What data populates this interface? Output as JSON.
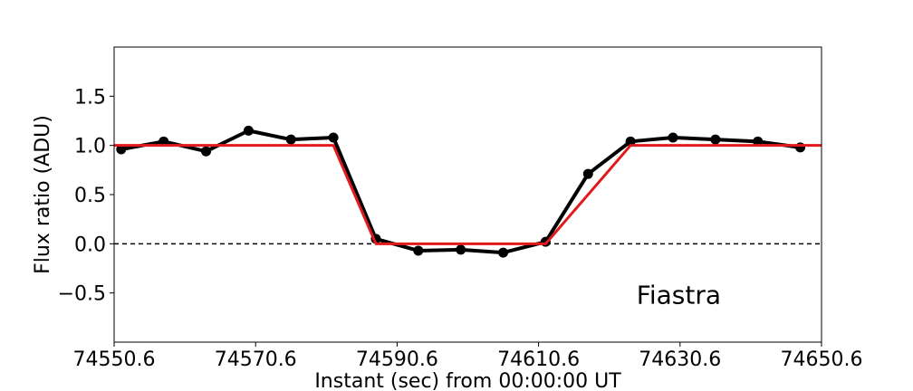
{
  "chart_data": {
    "type": "line",
    "title": "",
    "xlabel": "Instant (sec) from 00:00:00 UT",
    "ylabel": "Flux ratio (ADU)",
    "xlim": [
      74550.6,
      74650.6
    ],
    "ylim": [
      -1.0,
      2.0
    ],
    "xticks": [
      74550.6,
      74570.6,
      74590.6,
      74610.6,
      74630.6,
      74650.6
    ],
    "xtick_labels": [
      "74550.6",
      "74570.6",
      "74590.6",
      "74610.6",
      "74630.6",
      "74650.6"
    ],
    "yticks": [
      -0.5,
      0.0,
      0.5,
      1.0,
      1.5
    ],
    "ytick_labels": [
      "−0.5",
      "0.0",
      "0.5",
      "1.0",
      "1.5"
    ],
    "grid": false,
    "annotation": "Fiastra",
    "series": [
      {
        "color": "#000000",
        "markers": true,
        "x": [
          74551.6,
          74557.6,
          74563.6,
          74569.6,
          74575.6,
          74581.6,
          74587.6,
          74593.6,
          74599.6,
          74605.6,
          74611.6,
          74617.6,
          74623.6,
          74629.6,
          74635.6,
          74641.6,
          74647.6
        ],
        "y": [
          0.96,
          1.04,
          0.94,
          1.15,
          1.06,
          1.08,
          0.05,
          -0.07,
          -0.06,
          -0.09,
          0.02,
          0.71,
          1.04,
          1.08,
          1.06,
          1.04,
          0.98
        ]
      },
      {
        "color": "#e31a1c",
        "markers": false,
        "x": [
          74550.6,
          74581.6,
          74587.6,
          74611.6,
          74623.6,
          74650.6
        ],
        "y": [
          1.0,
          1.0,
          0.0,
          0.0,
          1.0,
          1.0
        ]
      },
      {
        "color": "#000000",
        "markers": false,
        "dashed": true,
        "x": [
          74550.6,
          74650.6
        ],
        "y": [
          0.0,
          0.0
        ]
      }
    ]
  }
}
